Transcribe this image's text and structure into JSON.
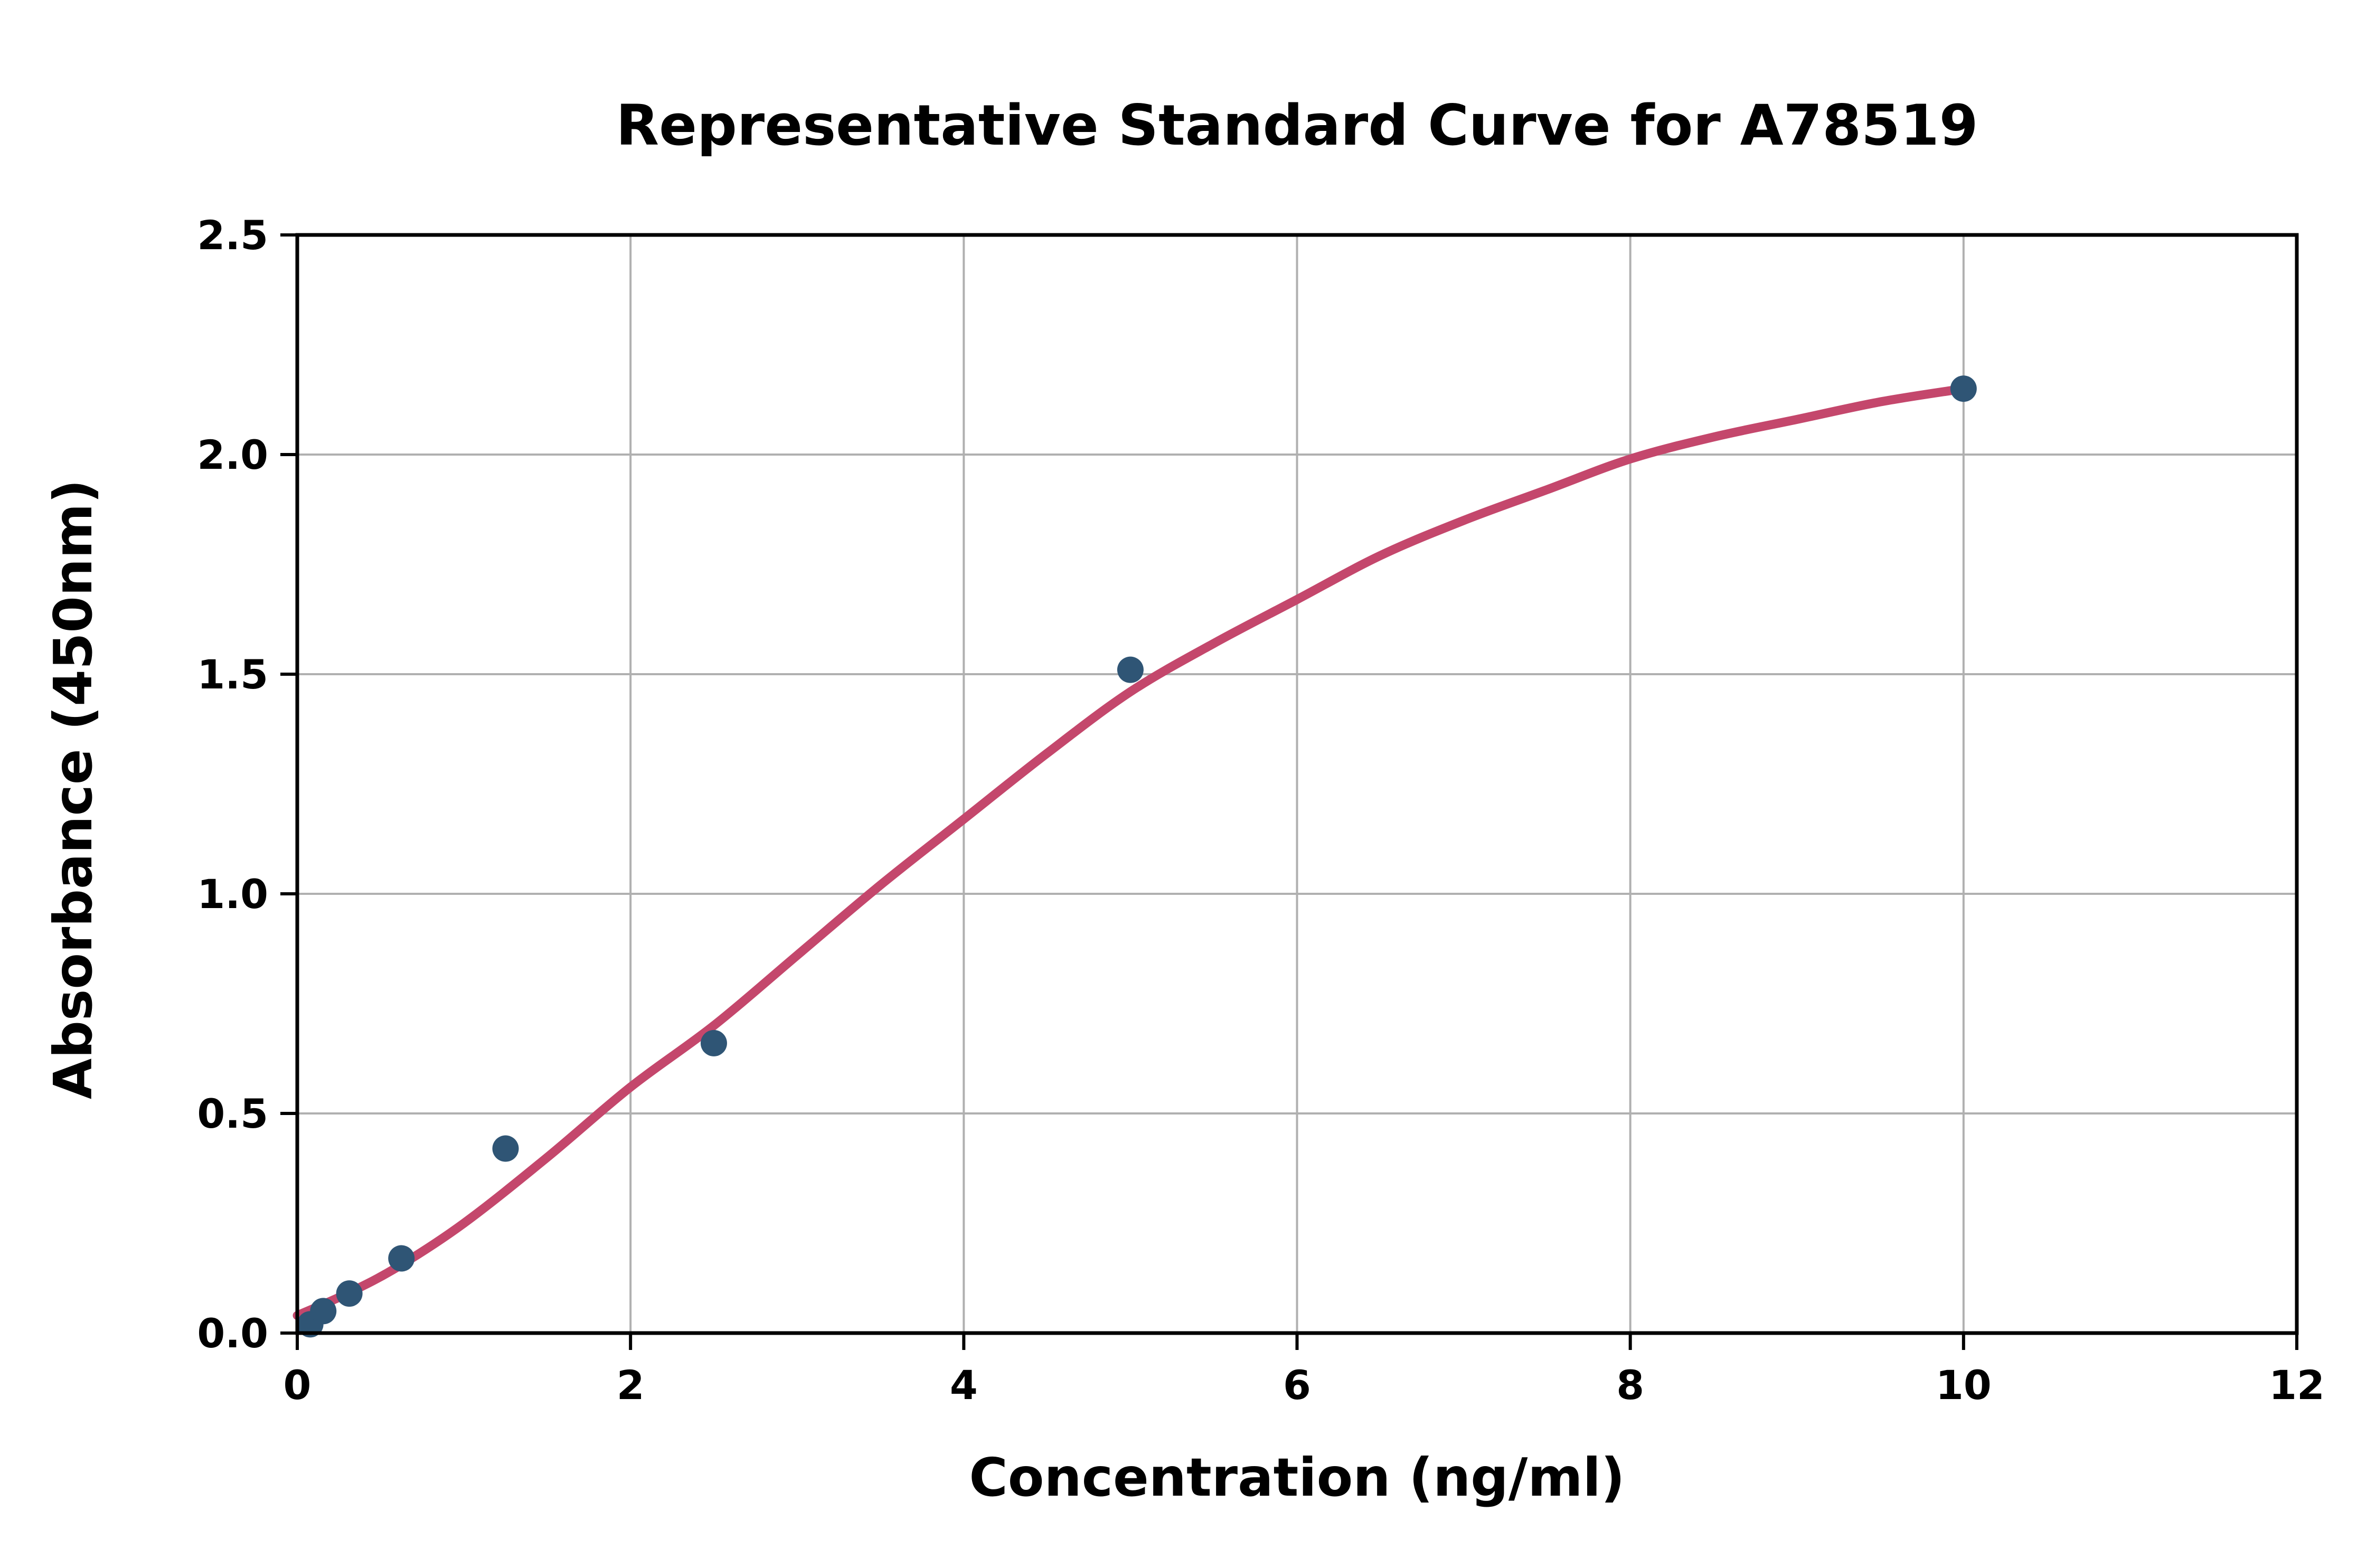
{
  "chart_data": {
    "type": "scatter",
    "title": "Representative Standard Curve for A78519",
    "xlabel": "Concentration (ng/ml)",
    "ylabel": "Absorbance (450nm)",
    "xlim": [
      0,
      12
    ],
    "ylim": [
      0,
      2.5
    ],
    "grid": true,
    "legend_position": "none",
    "x_ticks": [
      0,
      2,
      4,
      6,
      8,
      10,
      12
    ],
    "x_tick_labels": [
      "0",
      "2",
      "4",
      "6",
      "8",
      "10",
      "12"
    ],
    "y_ticks": [
      0,
      0.5,
      1.0,
      1.5,
      2.0,
      2.5
    ],
    "y_tick_labels": [
      "0.0",
      "0.5",
      "1.0",
      "1.5",
      "2.0",
      "2.5"
    ],
    "series": [
      {
        "name": "standard-points",
        "type": "scatter",
        "color": "#2f5575",
        "points": [
          [
            0.078,
            0.02
          ],
          [
            0.156,
            0.05
          ],
          [
            0.3125,
            0.09
          ],
          [
            0.625,
            0.17
          ],
          [
            1.25,
            0.42
          ],
          [
            2.5,
            0.66
          ],
          [
            5,
            1.51
          ],
          [
            10,
            2.15
          ]
        ]
      },
      {
        "name": "fit-curve",
        "type": "line",
        "color": "#c4476c",
        "points": [
          [
            0,
            0.04
          ],
          [
            0.3,
            0.09
          ],
          [
            0.6,
            0.15
          ],
          [
            1.0,
            0.25
          ],
          [
            1.5,
            0.4
          ],
          [
            2.0,
            0.56
          ],
          [
            2.5,
            0.7
          ],
          [
            3.0,
            0.86
          ],
          [
            3.5,
            1.02
          ],
          [
            4.0,
            1.17
          ],
          [
            4.5,
            1.32
          ],
          [
            5.0,
            1.46
          ],
          [
            5.5,
            1.57
          ],
          [
            6.0,
            1.67
          ],
          [
            6.5,
            1.77
          ],
          [
            7.0,
            1.85
          ],
          [
            7.5,
            1.92
          ],
          [
            8.0,
            1.99
          ],
          [
            8.5,
            2.04
          ],
          [
            9.0,
            2.08
          ],
          [
            9.5,
            2.12
          ],
          [
            10,
            2.15
          ]
        ]
      }
    ],
    "colors": {
      "marker": "#2f5575",
      "curve": "#c4476c",
      "grid": "#b0b0b0",
      "axis": "#000000",
      "background": "#ffffff"
    }
  }
}
